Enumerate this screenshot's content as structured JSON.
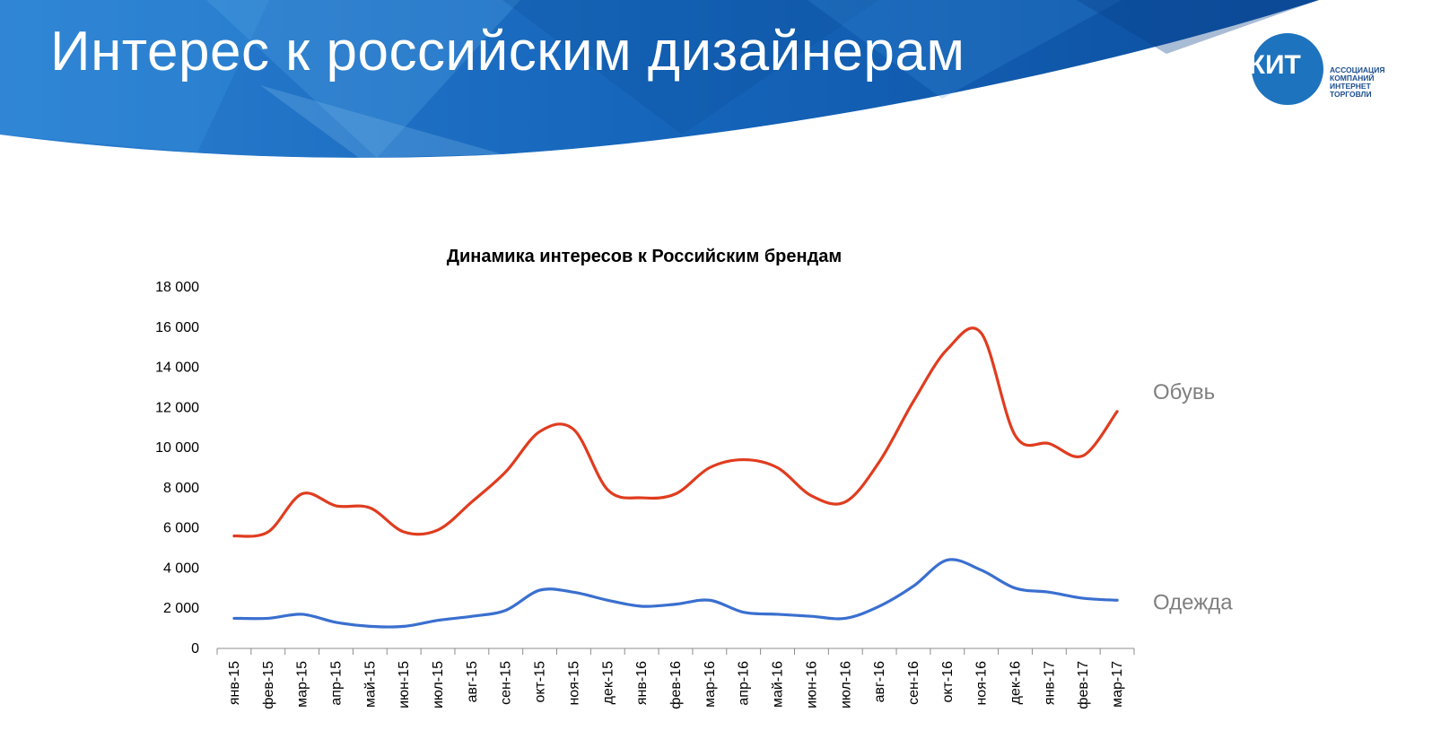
{
  "page": {
    "title": "Интерес к российским дизайнерам"
  },
  "logo": {
    "mark": "АКИТ",
    "lines": [
      "АССОЦИАЦИЯ",
      "КОМПАНИЙ",
      "ИНТЕРНЕТ",
      "ТОРГОВЛИ"
    ]
  },
  "colors": {
    "header_dark": "#0f4f9e",
    "header_light": "#2e8fd9",
    "shoes": "#e03c1f",
    "clothes": "#3a6fcf",
    "axis": "#8c8c8c",
    "series_label": "#7f7f7f"
  },
  "chart_data": {
    "type": "line",
    "title": "Динамика интересов к Российским брендам",
    "xlabel": "",
    "ylabel": "",
    "ylim": [
      0,
      18000
    ],
    "yticks": [
      0,
      2000,
      4000,
      6000,
      8000,
      10000,
      12000,
      14000,
      16000,
      18000
    ],
    "ytick_labels": [
      "0",
      "2 000",
      "4 000",
      "6 000",
      "8 000",
      "10 000",
      "12 000",
      "14 000",
      "16 000",
      "18 000"
    ],
    "grid": false,
    "legend": "inline-right",
    "categories": [
      "янв-15",
      "фев-15",
      "мар-15",
      "апр-15",
      "май-15",
      "июн-15",
      "июл-15",
      "авг-15",
      "сен-15",
      "окт-15",
      "ноя-15",
      "дек-15",
      "янв-16",
      "фев-16",
      "мар-16",
      "апр-16",
      "май-16",
      "июн-16",
      "июл-16",
      "авг-16",
      "сен-16",
      "окт-16",
      "ноя-16",
      "дек-16",
      "янв-17",
      "фев-17",
      "мар-17"
    ],
    "series": [
      {
        "name": "Обувь",
        "values": [
          5600,
          5800,
          7700,
          7100,
          7000,
          5800,
          5900,
          7300,
          8800,
          10800,
          10900,
          7900,
          7500,
          7700,
          9000,
          9400,
          9000,
          7600,
          7300,
          9300,
          12300,
          14900,
          15700,
          10600,
          10200,
          9600,
          11800
        ]
      },
      {
        "name": "Одежда",
        "values": [
          1500,
          1500,
          1700,
          1300,
          1100,
          1100,
          1400,
          1600,
          1900,
          2900,
          2800,
          2400,
          2100,
          2200,
          2400,
          1800,
          1700,
          1600,
          1500,
          2100,
          3100,
          4400,
          3900,
          3000,
          2800,
          2500,
          2400
        ]
      }
    ]
  }
}
